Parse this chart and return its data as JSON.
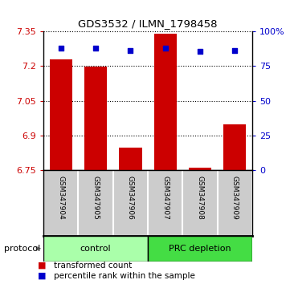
{
  "title": "GDS3532 / ILMN_1798458",
  "samples": [
    "GSM347904",
    "GSM347905",
    "GSM347906",
    "GSM347907",
    "GSM347908",
    "GSM347909"
  ],
  "bar_values": [
    7.228,
    7.198,
    6.848,
    7.338,
    6.762,
    6.948
  ],
  "blue_values": [
    7.278,
    7.278,
    7.268,
    7.278,
    7.262,
    7.268
  ],
  "bar_bottom": 6.75,
  "ylim_left": [
    6.75,
    7.35
  ],
  "ylim_right": [
    0,
    100
  ],
  "yticks_left": [
    6.75,
    6.9,
    7.05,
    7.2,
    7.35
  ],
  "yticks_right": [
    0,
    25,
    50,
    75,
    100
  ],
  "ytick_labels_left": [
    "6.75",
    "6.9",
    "7.05",
    "7.2",
    "7.35"
  ],
  "ytick_labels_right": [
    "0",
    "25",
    "50",
    "75",
    "100%"
  ],
  "bar_color": "#cc0000",
  "blue_color": "#0000cc",
  "bar_width": 0.65,
  "background_color": "#ffffff",
  "plot_bg": "#ffffff",
  "legend_red_label": "transformed count",
  "legend_blue_label": "percentile rank within the sample",
  "protocol_label": "protocol",
  "control_bg": "#aaffaa",
  "prc_bg": "#44dd44",
  "sample_box_bg": "#cccccc",
  "sample_box_border": "#888888"
}
